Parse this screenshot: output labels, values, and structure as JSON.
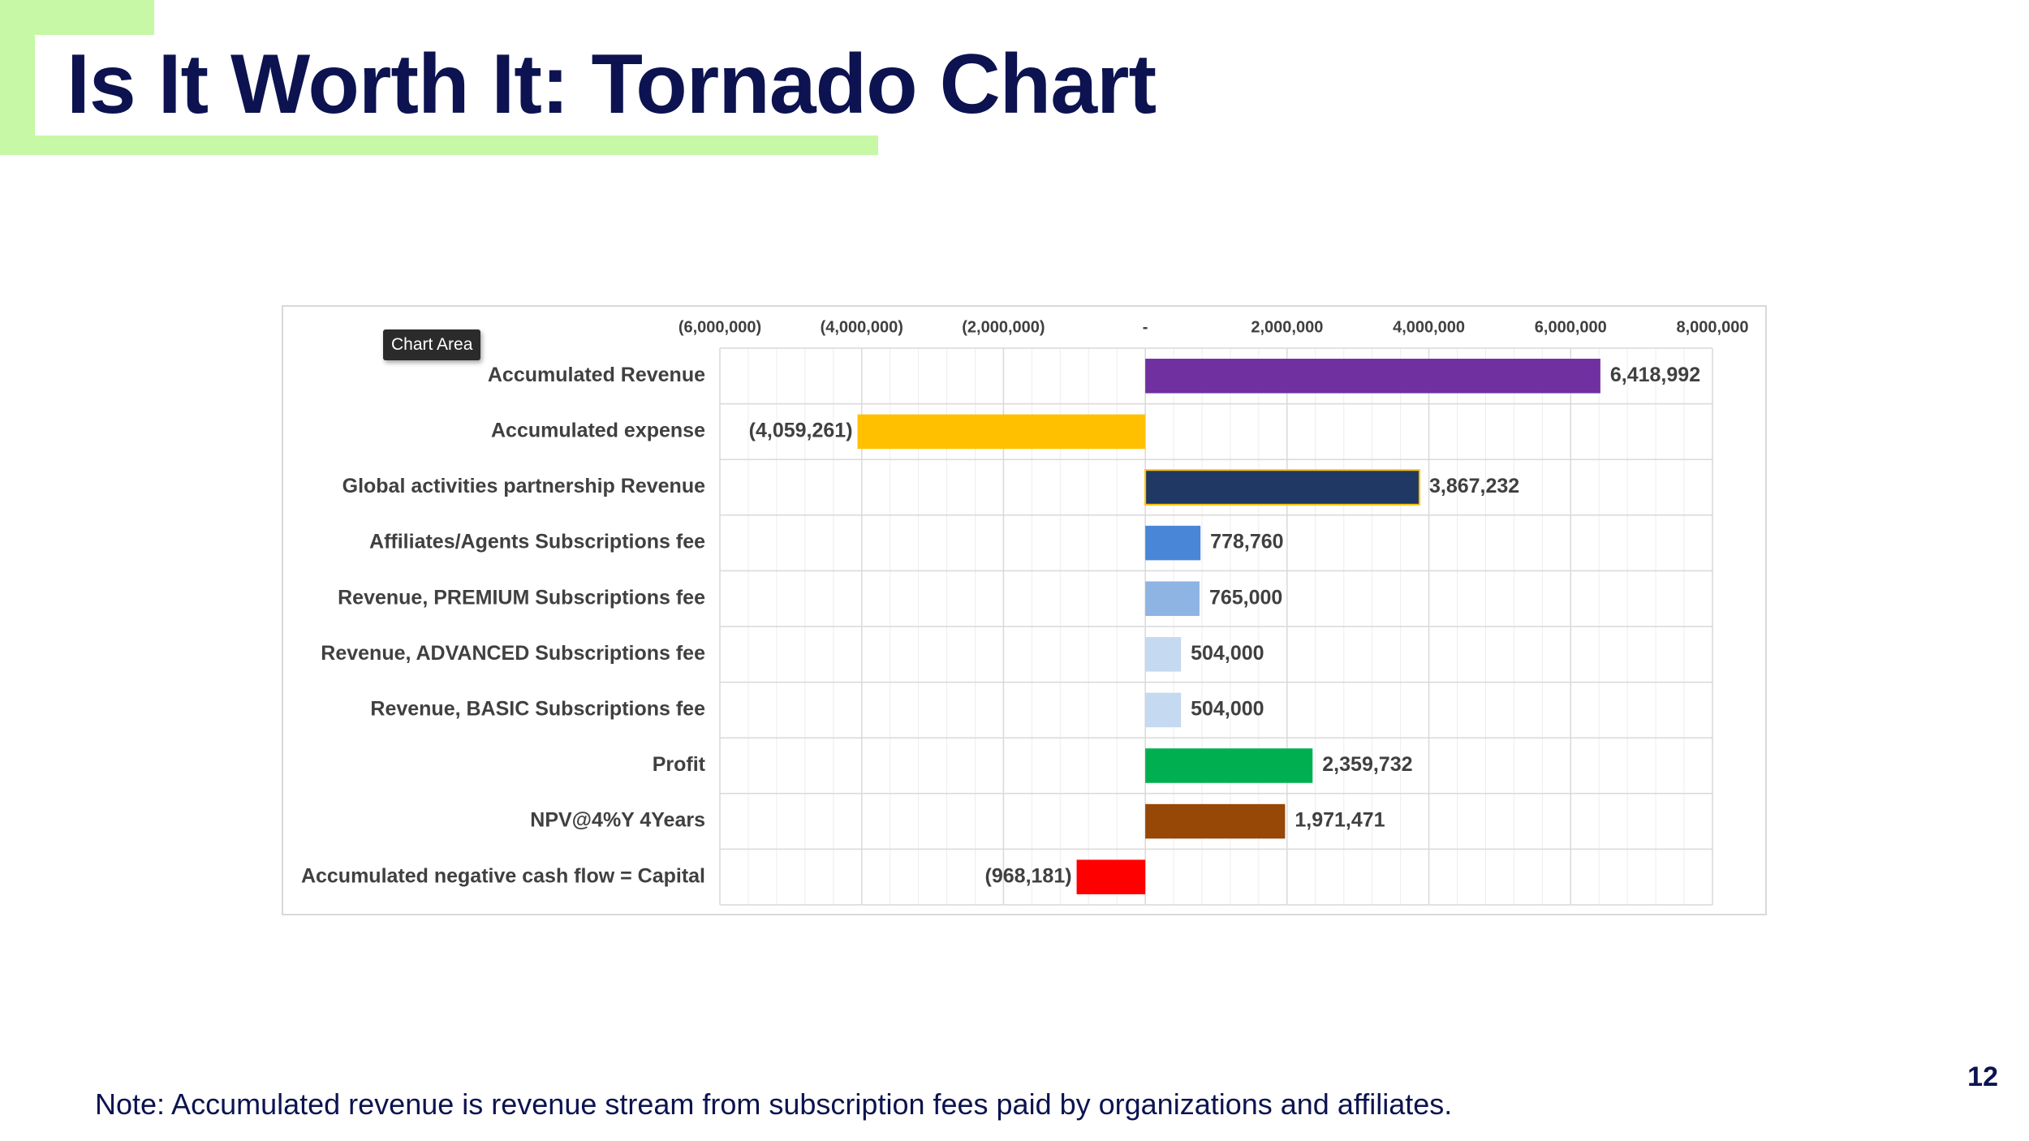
{
  "slide": {
    "title": "Is It Worth It: Tornado Chart",
    "page_number": "12",
    "note": "Note:  Accumulated revenue is revenue stream from subscription fees paid by organizations and affiliates.",
    "tooltip": "Chart Area"
  },
  "colors": {
    "title": "#0c1350",
    "accent": "#c6f8a6",
    "grid": "#d9d9d9",
    "label": "#404040"
  },
  "chart_data": {
    "type": "bar",
    "orientation": "horizontal",
    "title": "",
    "xlabel": "",
    "ylabel": "",
    "xlim": [
      -6000000,
      8000000
    ],
    "x_ticks": [
      -6000000,
      -4000000,
      -2000000,
      0,
      2000000,
      4000000,
      6000000,
      8000000
    ],
    "x_tick_labels": [
      "(6,000,000)",
      "(4,000,000)",
      "(2,000,000)",
      "-",
      "2,000,000",
      "4,000,000",
      "6,000,000",
      "8,000,000"
    ],
    "x_axis_position": "top",
    "grid": true,
    "legend": "none",
    "categories": [
      "Accumulated Revenue",
      "Accumulated expense",
      "Global activities partnership Revenue",
      "Affiliates/Agents Subscriptions fee",
      "Revenue, PREMIUM Subscriptions fee",
      "Revenue, ADVANCED Subscriptions fee",
      "Revenue, BASIC Subscriptions fee",
      "Profit",
      "NPV@4%Y 4Years",
      "Accumulated negative cash flow = Capital"
    ],
    "values": [
      6418992,
      -4059261,
      3867232,
      778760,
      765000,
      504000,
      504000,
      2359732,
      1971471,
      -968181
    ],
    "data_labels": [
      "6,418,992",
      "(4,059,261)",
      "3,867,232",
      "778,760",
      "765,000",
      "504,000",
      "504,000",
      "2,359,732",
      "1,971,471",
      "(968,181)"
    ],
    "bar_colors": [
      "#7030a0",
      "#ffc000",
      "#1f3864",
      "#4a86d8",
      "#8eb4e3",
      "#c5d9f1",
      "#c5d9f1",
      "#00b050",
      "#974706",
      "#ff0000"
    ]
  }
}
